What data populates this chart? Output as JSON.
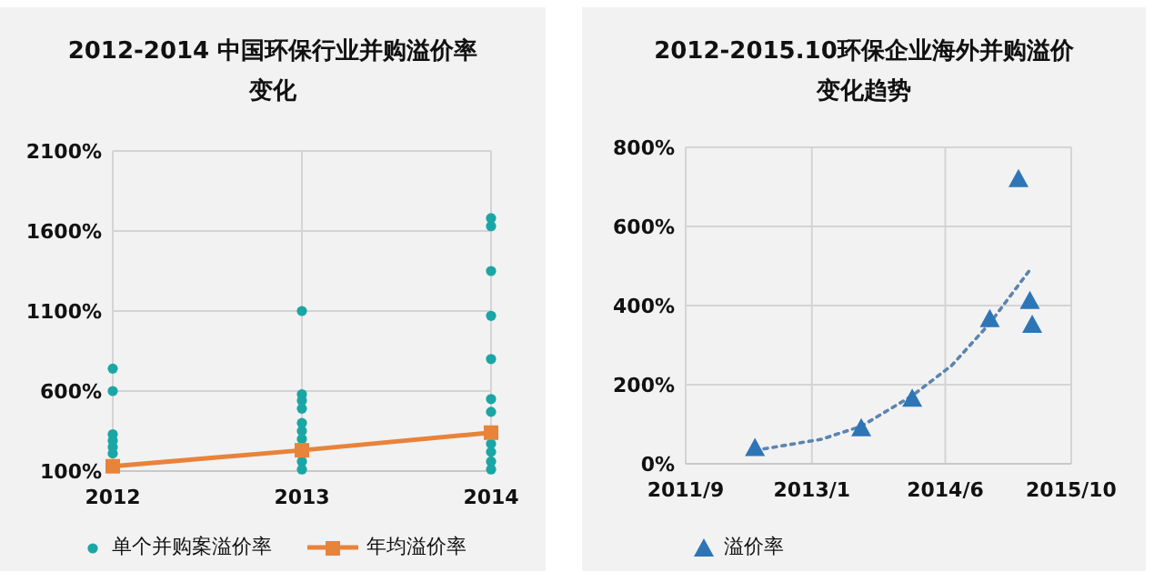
{
  "chart_data": [
    {
      "type": "scatter",
      "title": "2012-2014 中国环保行业并购溢价率变化",
      "xlim": [
        2012,
        2014
      ],
      "xticks": [
        2012,
        2013,
        2014
      ],
      "ylim": [
        100,
        2100
      ],
      "yticks": [
        {
          "value": 100,
          "label": "100%"
        },
        {
          "value": 600,
          "label": "600%"
        },
        {
          "value": 1100,
          "label": "1100%"
        },
        {
          "value": 1600,
          "label": "1600%"
        },
        {
          "value": 2100,
          "label": "2100%"
        }
      ],
      "grid": true,
      "legend": "bottom",
      "series": [
        {
          "name": "单个并购案溢价率",
          "type": "scatter",
          "marker": "circle",
          "color": "#1ba6a6",
          "x": [
            2012,
            2012,
            2012,
            2012,
            2012,
            2012,
            2013,
            2013,
            2013,
            2013,
            2013,
            2013,
            2013,
            2013,
            2013,
            2014,
            2014,
            2014,
            2014,
            2014,
            2014,
            2014,
            2014,
            2014,
            2014,
            2014
          ],
          "values": [
            740,
            600,
            330,
            290,
            250,
            210,
            1100,
            580,
            540,
            490,
            400,
            350,
            300,
            160,
            110,
            1680,
            1630,
            1350,
            1070,
            800,
            550,
            470,
            270,
            220,
            160,
            110
          ]
        },
        {
          "name": "年均溢价率",
          "type": "line",
          "marker": "square",
          "line_style": "solid",
          "color": "#e8833a",
          "x": [
            2012,
            2013,
            2014
          ],
          "values": [
            130,
            230,
            340
          ]
        }
      ]
    },
    {
      "type": "scatter",
      "title": "2012-2015.10环保企业海外并购溢价变化趋势",
      "xlim": [
        "2011-09",
        "2015-10"
      ],
      "xticks": [
        {
          "value": "2011-09",
          "label": "2011/9"
        },
        {
          "value": "2013-01",
          "label": "2013/1"
        },
        {
          "value": "2014-06",
          "label": "2014/6"
        },
        {
          "value": "2015-10",
          "label": "2015/10"
        }
      ],
      "ylim": [
        0,
        800
      ],
      "yticks": [
        {
          "value": 0,
          "label": "0%"
        },
        {
          "value": 200,
          "label": "200%"
        },
        {
          "value": 400,
          "label": "400%"
        },
        {
          "value": 600,
          "label": "600%"
        },
        {
          "value": 800,
          "label": "800%"
        }
      ],
      "grid": true,
      "legend": "bottom left",
      "series": [
        {
          "type": "line",
          "marker": "none",
          "line_style": "dotted",
          "color": "#5b84b0",
          "x": [
            "2012-05-26",
            "2013-02-07",
            "2013-07-11",
            "2014-01-24",
            "2014-06-25",
            "2014-11-20",
            "2015-04-24"
          ],
          "values": [
            34,
            62,
            95,
            172,
            248,
            355,
            490
          ]
        },
        {
          "name": "溢价率",
          "type": "scatter",
          "marker": "triangle",
          "color": "#2e75b6",
          "x": [
            "2012-05-26",
            "2013-07-11",
            "2014-01-24",
            "2014-11-20",
            "2015-03-11",
            "2015-04-24",
            "2015-05-03"
          ],
          "values": [
            40,
            90,
            165,
            366,
            720,
            412,
            352
          ]
        }
      ]
    }
  ]
}
